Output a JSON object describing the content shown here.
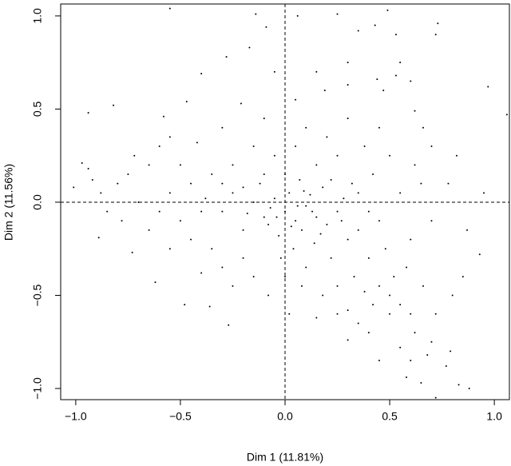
{
  "chart_data": {
    "type": "scatter",
    "xlabel": "Dim 1 (11.81%)",
    "ylabel": "Dim 2 (11.56%)",
    "color": "#000000",
    "xlim": [
      -1.072,
      1.072
    ],
    "ylim": [
      -1.06,
      1.064
    ],
    "xticks": [
      {
        "value": -1,
        "label": "−1.0"
      },
      {
        "value": -0.5,
        "label": "−0.5"
      },
      {
        "value": 0,
        "label": "0.0"
      },
      0.5,
      {
        "value": 1,
        "label": "1.0"
      }
    ],
    "yticks": [
      {
        "value": -1,
        "label": "−1.0"
      },
      {
        "value": -0.5,
        "label": "−0.5"
      },
      {
        "value": 0,
        "label": "0.0"
      },
      0.5,
      {
        "value": 1,
        "label": "1.0"
      }
    ],
    "hline": 0,
    "vline": 0,
    "x": [
      -0.55,
      -0.14,
      0.06,
      0.25,
      0.49,
      0.35,
      0.43,
      0.73,
      0.72,
      0.53,
      -0.09,
      -0.28,
      -0.17,
      -0.4,
      -0.82,
      -0.94,
      -0.58,
      -0.47,
      0.97,
      1.06,
      0.6,
      0.44,
      0.3,
      0.19,
      -0.21,
      0.62,
      -0.97,
      -0.94,
      -1.01,
      -0.89,
      -0.73,
      -0.62,
      -0.36,
      -0.27,
      0.02,
      0.3,
      0.45,
      0.58,
      0.65,
      0.72,
      0.88,
      0.83,
      0.79,
      0.68,
      0.55,
      0.62,
      0.5,
      0.85,
      0.93,
      0.95,
      0.87,
      0.78,
      0,
      0.05,
      -0.05,
      0.1,
      -0.1,
      0.02,
      0.08,
      -0.03,
      0.15,
      0.12,
      -0.15,
      0.2,
      0.04,
      -0.08,
      0.18,
      0.25,
      -0.2,
      0.07,
      -0.12,
      0.3,
      0.22,
      0.1,
      -0.02,
      0.14,
      0.28,
      -0.25,
      -0.3,
      0.35,
      0.4,
      0.33,
      0.45,
      0.5,
      0.42,
      0.55,
      0.38,
      0.25,
      0.18,
      0.08,
      0.3,
      0.6,
      0.52,
      0.58,
      0.48,
      0.6,
      0.45,
      0.55,
      0.42,
      0.5,
      0.38,
      0.25,
      0.15,
      0.05,
      -0.05,
      0.1,
      0.3,
      0.45,
      0.2,
      -0.15,
      -0.25,
      -0.35,
      -0.45,
      -0.55,
      -0.6,
      -0.7,
      -0.8,
      -0.85,
      -0.75,
      -0.65,
      -0.5,
      -0.4,
      -0.45,
      -0.35,
      -0.3,
      -0.55,
      -0.65,
      -0.2,
      -0.15,
      -0.25,
      -0.4,
      -0.08,
      0,
      -0.1,
      -0.2,
      -0.3,
      -0.38,
      -0.5,
      -0.6,
      -0.42,
      -0.3,
      -0.1,
      0,
      0.06,
      -0.04,
      0.13,
      0.03,
      -0.07,
      0.09,
      0.17,
      0.22,
      -0.18,
      0.27,
      0.35,
      0.32,
      0.4,
      0.7,
      0.65,
      0.7,
      0.62,
      0.8,
      0.72,
      0.66,
      0.35,
      0.25,
      0.4,
      0.15,
      -0.55,
      -0.72,
      -0.88,
      -0.92,
      -0.78,
      0.3,
      0.15,
      0.05,
      -0.05,
      0.55,
      0.47,
      0.66,
      0.82,
      -0.48,
      0.53,
      0.7,
      0.77,
      0.6
    ],
    "values": [
      1.04,
      1.01,
      1.0,
      1.01,
      1.03,
      0.92,
      0.95,
      0.96,
      0.9,
      0.9,
      0.94,
      0.78,
      0.83,
      0.69,
      0.52,
      0.48,
      0.46,
      0.54,
      0.62,
      0.47,
      0.65,
      0.66,
      0.63,
      0.6,
      0.53,
      0.49,
      0.21,
      0.18,
      0.08,
      -0.19,
      -0.27,
      -0.43,
      -0.56,
      -0.66,
      -0.6,
      -0.74,
      -0.85,
      -0.94,
      -0.97,
      -1.05,
      -1.0,
      -0.98,
      -0.8,
      -0.82,
      -0.78,
      -0.7,
      -0.6,
      -0.4,
      -0.28,
      0.05,
      -0.15,
      0.1,
      -0.05,
      -0.1,
      0.02,
      -0.02,
      -0.08,
      0.05,
      -0.15,
      -0.18,
      -0.08,
      0.04,
      0,
      -0.12,
      -0.25,
      -0.12,
      0.08,
      -0.05,
      -0.15,
      0.12,
      0.1,
      -0.2,
      -0.3,
      -0.35,
      -0.3,
      -0.22,
      0.02,
      0.05,
      -0.05,
      -0.15,
      -0.3,
      -0.4,
      -0.45,
      -0.5,
      -0.55,
      -0.55,
      -0.48,
      -0.45,
      -0.5,
      -0.45,
      -0.58,
      -0.6,
      -0.4,
      -0.35,
      -0.25,
      -0.2,
      -0.1,
      0.05,
      0.15,
      0.25,
      0.3,
      0.25,
      0.2,
      0.3,
      0.25,
      0.4,
      0.45,
      0.4,
      0.35,
      0.3,
      0.2,
      0.15,
      0.1,
      0.05,
      -0.05,
      0,
      0.1,
      -0.05,
      0.15,
      0.2,
      -0.1,
      -0.05,
      -0.2,
      -0.25,
      -0.35,
      -0.25,
      -0.15,
      -0.3,
      -0.4,
      -0.45,
      -0.38,
      -0.5,
      -0.4,
      0.15,
      0.08,
      0.1,
      0.02,
      0.2,
      0.3,
      0.32,
      0.4,
      0.45,
      0.15,
      -0.02,
      -0.08,
      -0.05,
      -0.13,
      -0.03,
      0.06,
      -0.17,
      0.12,
      -0.06,
      -0.1,
      0.05,
      0.1,
      -0.05,
      -0.1,
      0.1,
      0.3,
      0.2,
      -0.5,
      -0.6,
      -0.45,
      -0.65,
      -0.6,
      -0.7,
      -0.62,
      0.35,
      0.25,
      0.05,
      0.12,
      -0.1,
      0.75,
      0.7,
      0.55,
      0.7,
      0.75,
      0.6,
      0.4,
      0.25,
      -0.55,
      0.68,
      -0.75,
      -0.88,
      -0.85
    ]
  }
}
